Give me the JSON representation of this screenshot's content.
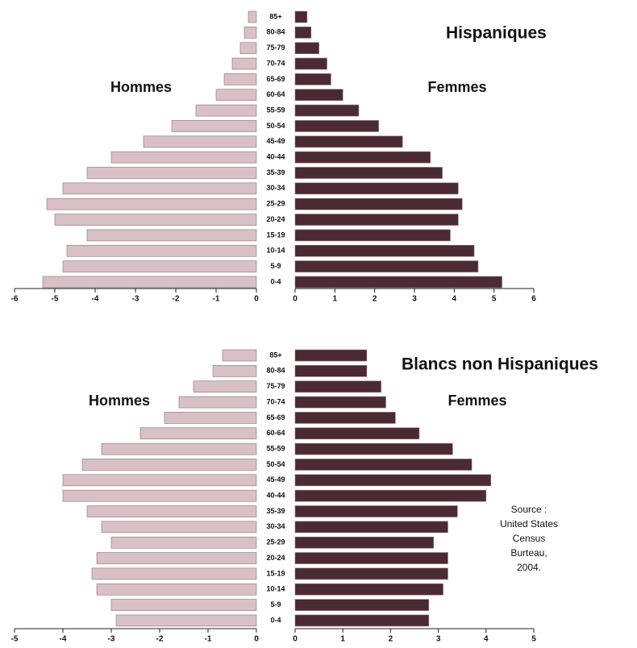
{
  "chart_data": [
    {
      "type": "pyramid",
      "title": "Hispaniques",
      "categories": [
        "85+",
        "80-84",
        "75-79",
        "70-74",
        "65-69",
        "60-64",
        "55-59",
        "50-54",
        "45-49",
        "40-44",
        "35-39",
        "30-34",
        "25-29",
        "20-24",
        "15-19",
        "10-14",
        "5-9",
        "0-4"
      ],
      "series": [
        {
          "name": "Hommes",
          "color": "#d8c0c6",
          "axis": "x",
          "values": [
            -0.2,
            -0.3,
            -0.4,
            -0.6,
            -0.8,
            -1.0,
            -1.5,
            -2.1,
            -2.8,
            -3.6,
            -4.2,
            -4.8,
            -5.2,
            -5.0,
            -4.2,
            -4.7,
            -4.8,
            -5.3
          ]
        },
        {
          "name": "Femmes",
          "color": "#4b2a34",
          "axis": "x2",
          "values": [
            0.3,
            0.4,
            0.6,
            0.8,
            0.9,
            1.2,
            1.6,
            2.1,
            2.7,
            3.4,
            3.7,
            4.1,
            4.2,
            4.1,
            3.9,
            4.5,
            4.6,
            5.2
          ]
        }
      ],
      "xlim": [
        -6,
        0
      ],
      "xticks": [
        -6,
        -5,
        -4,
        -3,
        -2,
        -1,
        0
      ],
      "x2lim": [
        0,
        6
      ],
      "x2ticks": [
        0,
        1,
        2,
        3,
        4,
        5,
        6
      ]
    },
    {
      "type": "pyramid",
      "title": "Blancs non Hispaniques",
      "categories": [
        "85+",
        "80-84",
        "75-79",
        "70-74",
        "65-69",
        "60-64",
        "55-59",
        "50-54",
        "45-49",
        "40-44",
        "35-39",
        "30-34",
        "25-29",
        "20-24",
        "15-19",
        "10-14",
        "5-9",
        "0-4"
      ],
      "series": [
        {
          "name": "Hommes",
          "color": "#d8c0c6",
          "axis": "x",
          "values": [
            -0.7,
            -0.9,
            -1.3,
            -1.6,
            -1.9,
            -2.4,
            -3.2,
            -3.6,
            -4.0,
            -4.0,
            -3.5,
            -3.2,
            -3.0,
            -3.3,
            -3.4,
            -3.3,
            -3.0,
            -2.9
          ]
        },
        {
          "name": "Femmes",
          "color": "#4b2a34",
          "axis": "x2",
          "values": [
            1.5,
            1.5,
            1.8,
            1.9,
            2.1,
            2.6,
            3.3,
            3.7,
            4.1,
            4.0,
            3.4,
            3.2,
            2.9,
            3.2,
            3.2,
            3.1,
            2.8,
            2.8
          ]
        }
      ],
      "xlim": [
        -5,
        0
      ],
      "xticks": [
        -5,
        -4,
        -3,
        -2,
        -1,
        0
      ],
      "x2lim": [
        0,
        5
      ],
      "x2ticks": [
        0,
        1,
        2,
        3,
        4,
        5
      ],
      "annotation": [
        "Source :",
        "United States",
        "Census",
        "Burteau,",
        "2004."
      ]
    }
  ]
}
